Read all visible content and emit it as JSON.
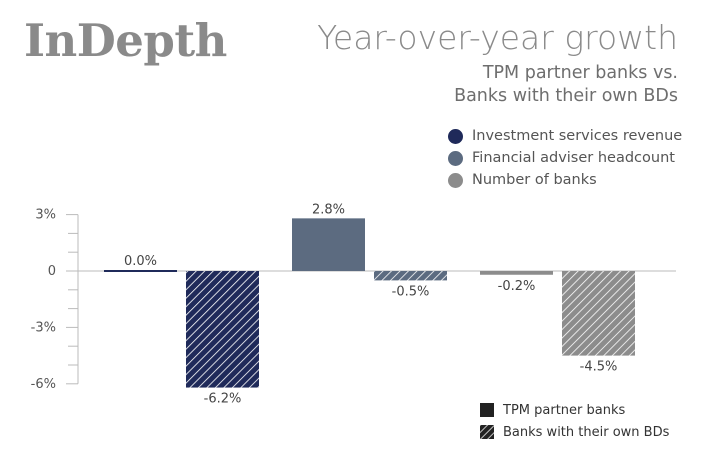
{
  "brand": "InDepth",
  "title": "Year-over-year growth",
  "subtitle_line1": "TPM partner banks vs.",
  "subtitle_line2": "Banks with their own BDs",
  "colors": {
    "investment": "#1f2a5a",
    "headcount": "#5c6b80",
    "banks": "#8c8c8c",
    "axis": "#bbbbbb",
    "solid_swatch": "#222222"
  },
  "chart_data": {
    "type": "bar",
    "title": "Year-over-year growth",
    "subtitle": "TPM partner banks vs. Banks with their own BDs",
    "ylim": [
      -6,
      3
    ],
    "yticks": [
      3,
      0,
      -3,
      -6
    ],
    "ytick_labels": [
      "3%",
      "0",
      "-3%",
      "-6%"
    ],
    "series": [
      {
        "name": "Investment services revenue",
        "color": "#1f2a5a",
        "values": {
          "TPM partner banks": 0.0,
          "Banks with their own BDs": -6.2
        },
        "labels": [
          "0.0%",
          "-6.2%"
        ]
      },
      {
        "name": "Financial adviser headcount",
        "color": "#5c6b80",
        "values": {
          "TPM partner banks": 2.8,
          "Banks with their own BDs": -0.5
        },
        "labels": [
          "2.8%",
          "-0.5%"
        ]
      },
      {
        "name": "Number of banks",
        "color": "#8c8c8c",
        "values": {
          "TPM partner banks": -0.2,
          "Banks with their own BDs": -4.5
        },
        "labels": [
          "-0.2%",
          "-4.5%"
        ]
      }
    ],
    "bar_groups": [
      "TPM partner banks",
      "Banks with their own BDs"
    ],
    "group_fill": {
      "TPM partner banks": "solid",
      "Banks with their own BDs": "hatched"
    },
    "legend_placement": "top-right",
    "grid": false
  }
}
